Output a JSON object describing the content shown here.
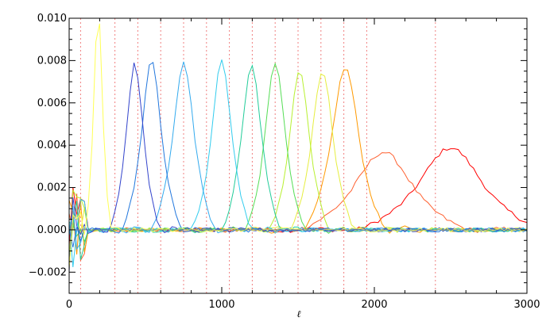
{
  "chart_data": {
    "type": "line",
    "title": "",
    "xlabel": "ℓ",
    "ylabel": "",
    "xlim": [
      0,
      3000
    ],
    "ylim": [
      -0.003,
      0.01
    ],
    "x_ticks": [
      "0",
      "1000",
      "2000",
      "3000"
    ],
    "y_ticks": [
      "−0.002",
      "0.000",
      "0.002",
      "0.004",
      "0.006",
      "0.008",
      "0.010"
    ],
    "y_tick_values": [
      -0.002,
      0.0,
      0.002,
      0.004,
      0.006,
      0.008,
      0.01
    ],
    "x_tick_values": [
      0,
      1000,
      2000,
      3000
    ],
    "grid": false,
    "band_boundaries": {
      "color": "#f08080",
      "style": "dotted",
      "x": [
        75,
        300,
        450,
        600,
        750,
        900,
        1050,
        1200,
        1350,
        1500,
        1650,
        1800,
        1950,
        2400
      ]
    },
    "series": [
      {
        "color": "#ff0000",
        "peak_x": 2500,
        "peak_y": 0.0037,
        "width": 220
      },
      {
        "color": "#ff6030",
        "peak_x": 2060,
        "peak_y": 0.0035,
        "width": 200
      },
      {
        "color": "#ff9900",
        "peak_x": 1810,
        "peak_y": 0.0073,
        "width": 95
      },
      {
        "color": "#e6ee40",
        "peak_x": 1660,
        "peak_y": 0.0072,
        "width": 75
      },
      {
        "color": "#b8f030",
        "peak_x": 1510,
        "peak_y": 0.0072,
        "width": 70
      },
      {
        "color": "#55dd55",
        "peak_x": 1350,
        "peak_y": 0.0075,
        "width": 70
      },
      {
        "color": "#22cc99",
        "peak_x": 1195,
        "peak_y": 0.0074,
        "width": 70
      },
      {
        "color": "#33ccee",
        "peak_x": 1000,
        "peak_y": 0.0076,
        "width": 70
      },
      {
        "color": "#33aaee",
        "peak_x": 750,
        "peak_y": 0.0075,
        "width": 75
      },
      {
        "color": "#2277dd",
        "peak_x": 540,
        "peak_y": 0.0076,
        "width": 70
      },
      {
        "color": "#3344cc",
        "peak_x": 430,
        "peak_y": 0.0075,
        "width": 60
      },
      {
        "color": "#ffff55",
        "peak_x": 190,
        "peak_y": 0.01,
        "width": 30
      }
    ]
  }
}
